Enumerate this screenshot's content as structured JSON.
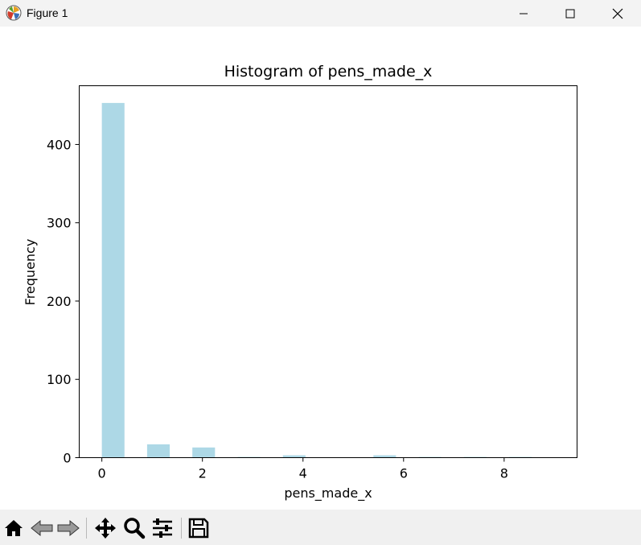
{
  "window": {
    "title": "Figure 1",
    "icons": [
      "matplotlib-icon",
      "minimize-icon",
      "maximize-icon",
      "close-icon"
    ]
  },
  "toolbar": {
    "items": [
      "home-icon",
      "back-arrow-icon",
      "forward-arrow-icon",
      "pan-icon",
      "zoom-icon",
      "configure-subplots-icon",
      "save-icon"
    ]
  },
  "chart_data": {
    "type": "bar",
    "title": "Histogram of pens_made_x",
    "xlabel": "pens_made_x",
    "ylabel": "Frequency",
    "xlim": [
      -0.45,
      9.45
    ],
    "ylim": [
      0,
      475
    ],
    "xticks": [
      0,
      2,
      4,
      6,
      8
    ],
    "yticks": [
      0,
      100,
      200,
      300,
      400
    ],
    "bin_width": 0.45,
    "bar_color": "#add8e6",
    "x": [
      0,
      0.9,
      1.8,
      2.7,
      3.6,
      4.5,
      5.4,
      6.3,
      7.2,
      8.1
    ],
    "values": [
      453,
      17,
      13,
      1,
      3,
      0,
      3,
      1,
      1,
      1
    ],
    "grid": false,
    "legend": "none"
  }
}
